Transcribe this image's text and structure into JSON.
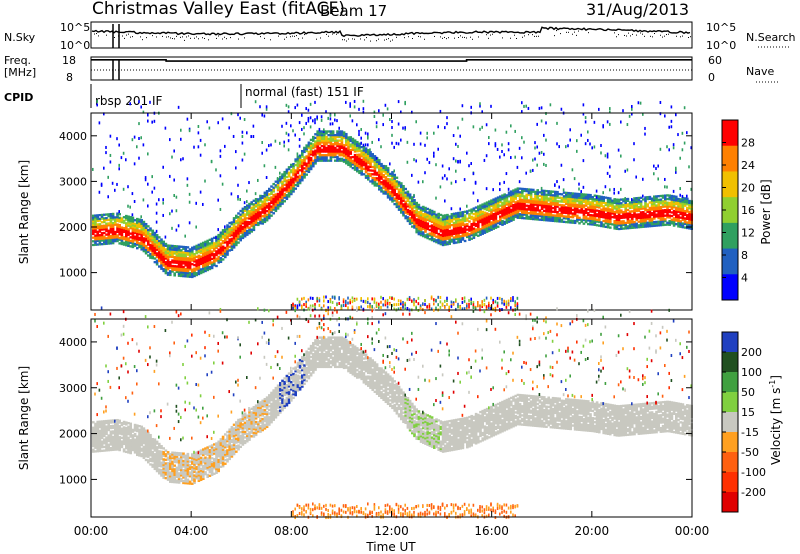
{
  "header": {
    "station": "Christmas Valley East (fitACF)",
    "beam": "Beam 17",
    "date": "31/Aug/2013"
  },
  "top_panels": {
    "nsky": {
      "label": "N.Sky",
      "left_ticks": [
        "10^5",
        "10^0"
      ],
      "right_label": "N.Search",
      "right_ticks": [
        "10^5",
        "10^0"
      ]
    },
    "freq": {
      "label_line1": "Freq.",
      "label_line2": "[MHz]",
      "left_ticks": [
        "18",
        "8"
      ],
      "right_label": "Nave",
      "right_ticks": [
        "60",
        "0"
      ],
      "freq_segments_utc_mhz": [
        {
          "start": 0.0,
          "end": 3.0,
          "freq": 10.8
        },
        {
          "start": 3.0,
          "end": 15.0,
          "freq": 10.2
        },
        {
          "start": 15.0,
          "end": 24.0,
          "freq": 10.8
        }
      ]
    },
    "cpid": {
      "label": "CPID",
      "segments": [
        {
          "start": 0.0,
          "end": 6.0,
          "text": "rbsp 201 IF"
        },
        {
          "start": 6.0,
          "end": 24.0,
          "text": "normal (fast) 151 IF"
        }
      ]
    }
  },
  "chart_data": [
    {
      "type": "heatmap",
      "name": "power",
      "ylabel": "Slant Range [km]",
      "xlabel": "Time UT",
      "xlim": [
        0,
        24
      ],
      "ylim": [
        180,
        4500
      ],
      "yticks": [
        "1000",
        "2000",
        "3000",
        "4000"
      ],
      "xticks": [
        "00:00",
        "04:00",
        "08:00",
        "12:00",
        "16:00",
        "20:00",
        "00:00"
      ],
      "colorbar": {
        "label": "Power [dB]",
        "ticks": [
          "4",
          "8",
          "12",
          "16",
          "20",
          "24",
          "28"
        ],
        "range": [
          0,
          32
        ],
        "colors": [
          "#0000ff",
          "#2060c0",
          "#30a060",
          "#90d030",
          "#f0c000",
          "#ff8000",
          "#ff0000"
        ]
      },
      "main_echo_band_utc_km": [
        [
          0,
          1850
        ],
        [
          1,
          1900
        ],
        [
          2,
          1750
        ],
        [
          3,
          1200
        ],
        [
          4,
          1150
        ],
        [
          5,
          1400
        ],
        [
          6,
          2000
        ],
        [
          7,
          2400
        ],
        [
          8,
          3000
        ],
        [
          9,
          3700
        ],
        [
          10,
          3700
        ],
        [
          11,
          3300
        ],
        [
          12,
          2800
        ],
        [
          13,
          2100
        ],
        [
          14,
          1850
        ],
        [
          15,
          1950
        ],
        [
          16,
          2200
        ],
        [
          17,
          2450
        ],
        [
          18,
          2400
        ],
        [
          19,
          2350
        ],
        [
          20,
          2300
        ],
        [
          21,
          2200
        ],
        [
          22,
          2250
        ],
        [
          23,
          2300
        ],
        [
          24,
          2200
        ]
      ]
    },
    {
      "type": "heatmap",
      "name": "velocity",
      "ylabel": "Slant Range [km]",
      "xlabel": "Time UT",
      "xlim": [
        0,
        24
      ],
      "ylim": [
        180,
        4500
      ],
      "yticks": [
        "1000",
        "2000",
        "3000",
        "4000"
      ],
      "xticks": [
        "00:00",
        "04:00",
        "08:00",
        "12:00",
        "16:00",
        "20:00",
        "00:00"
      ],
      "colorbar": {
        "label_text": "Velocity [m s",
        "label_sup": "-1",
        "label_end": "]",
        "ticks": [
          "200",
          "100",
          "50",
          "15",
          "-15",
          "-50",
          "-100",
          "-200"
        ],
        "colors": [
          "#2040c0",
          "#205020",
          "#40a040",
          "#80d040",
          "#c8c8c0",
          "#ffa020",
          "#ff6010",
          "#ff3000",
          "#e00000"
        ]
      },
      "main_echo_band_utc_km": [
        [
          0,
          1850
        ],
        [
          1,
          1900
        ],
        [
          2,
          1750
        ],
        [
          3,
          1200
        ],
        [
          4,
          1150
        ],
        [
          5,
          1400
        ],
        [
          6,
          2000
        ],
        [
          7,
          2400
        ],
        [
          8,
          3000
        ],
        [
          9,
          3700
        ],
        [
          10,
          3700
        ],
        [
          11,
          3300
        ],
        [
          12,
          2800
        ],
        [
          13,
          2100
        ],
        [
          14,
          1850
        ],
        [
          15,
          1950
        ],
        [
          16,
          2200
        ],
        [
          17,
          2450
        ],
        [
          18,
          2400
        ],
        [
          19,
          2350
        ],
        [
          20,
          2300
        ],
        [
          21,
          2200
        ],
        [
          22,
          2250
        ],
        [
          23,
          2300
        ],
        [
          24,
          2200
        ]
      ]
    }
  ],
  "colors": {
    "background": "#ffffff",
    "axes": "#000000",
    "ground_scatter": "#c8c8c0"
  }
}
